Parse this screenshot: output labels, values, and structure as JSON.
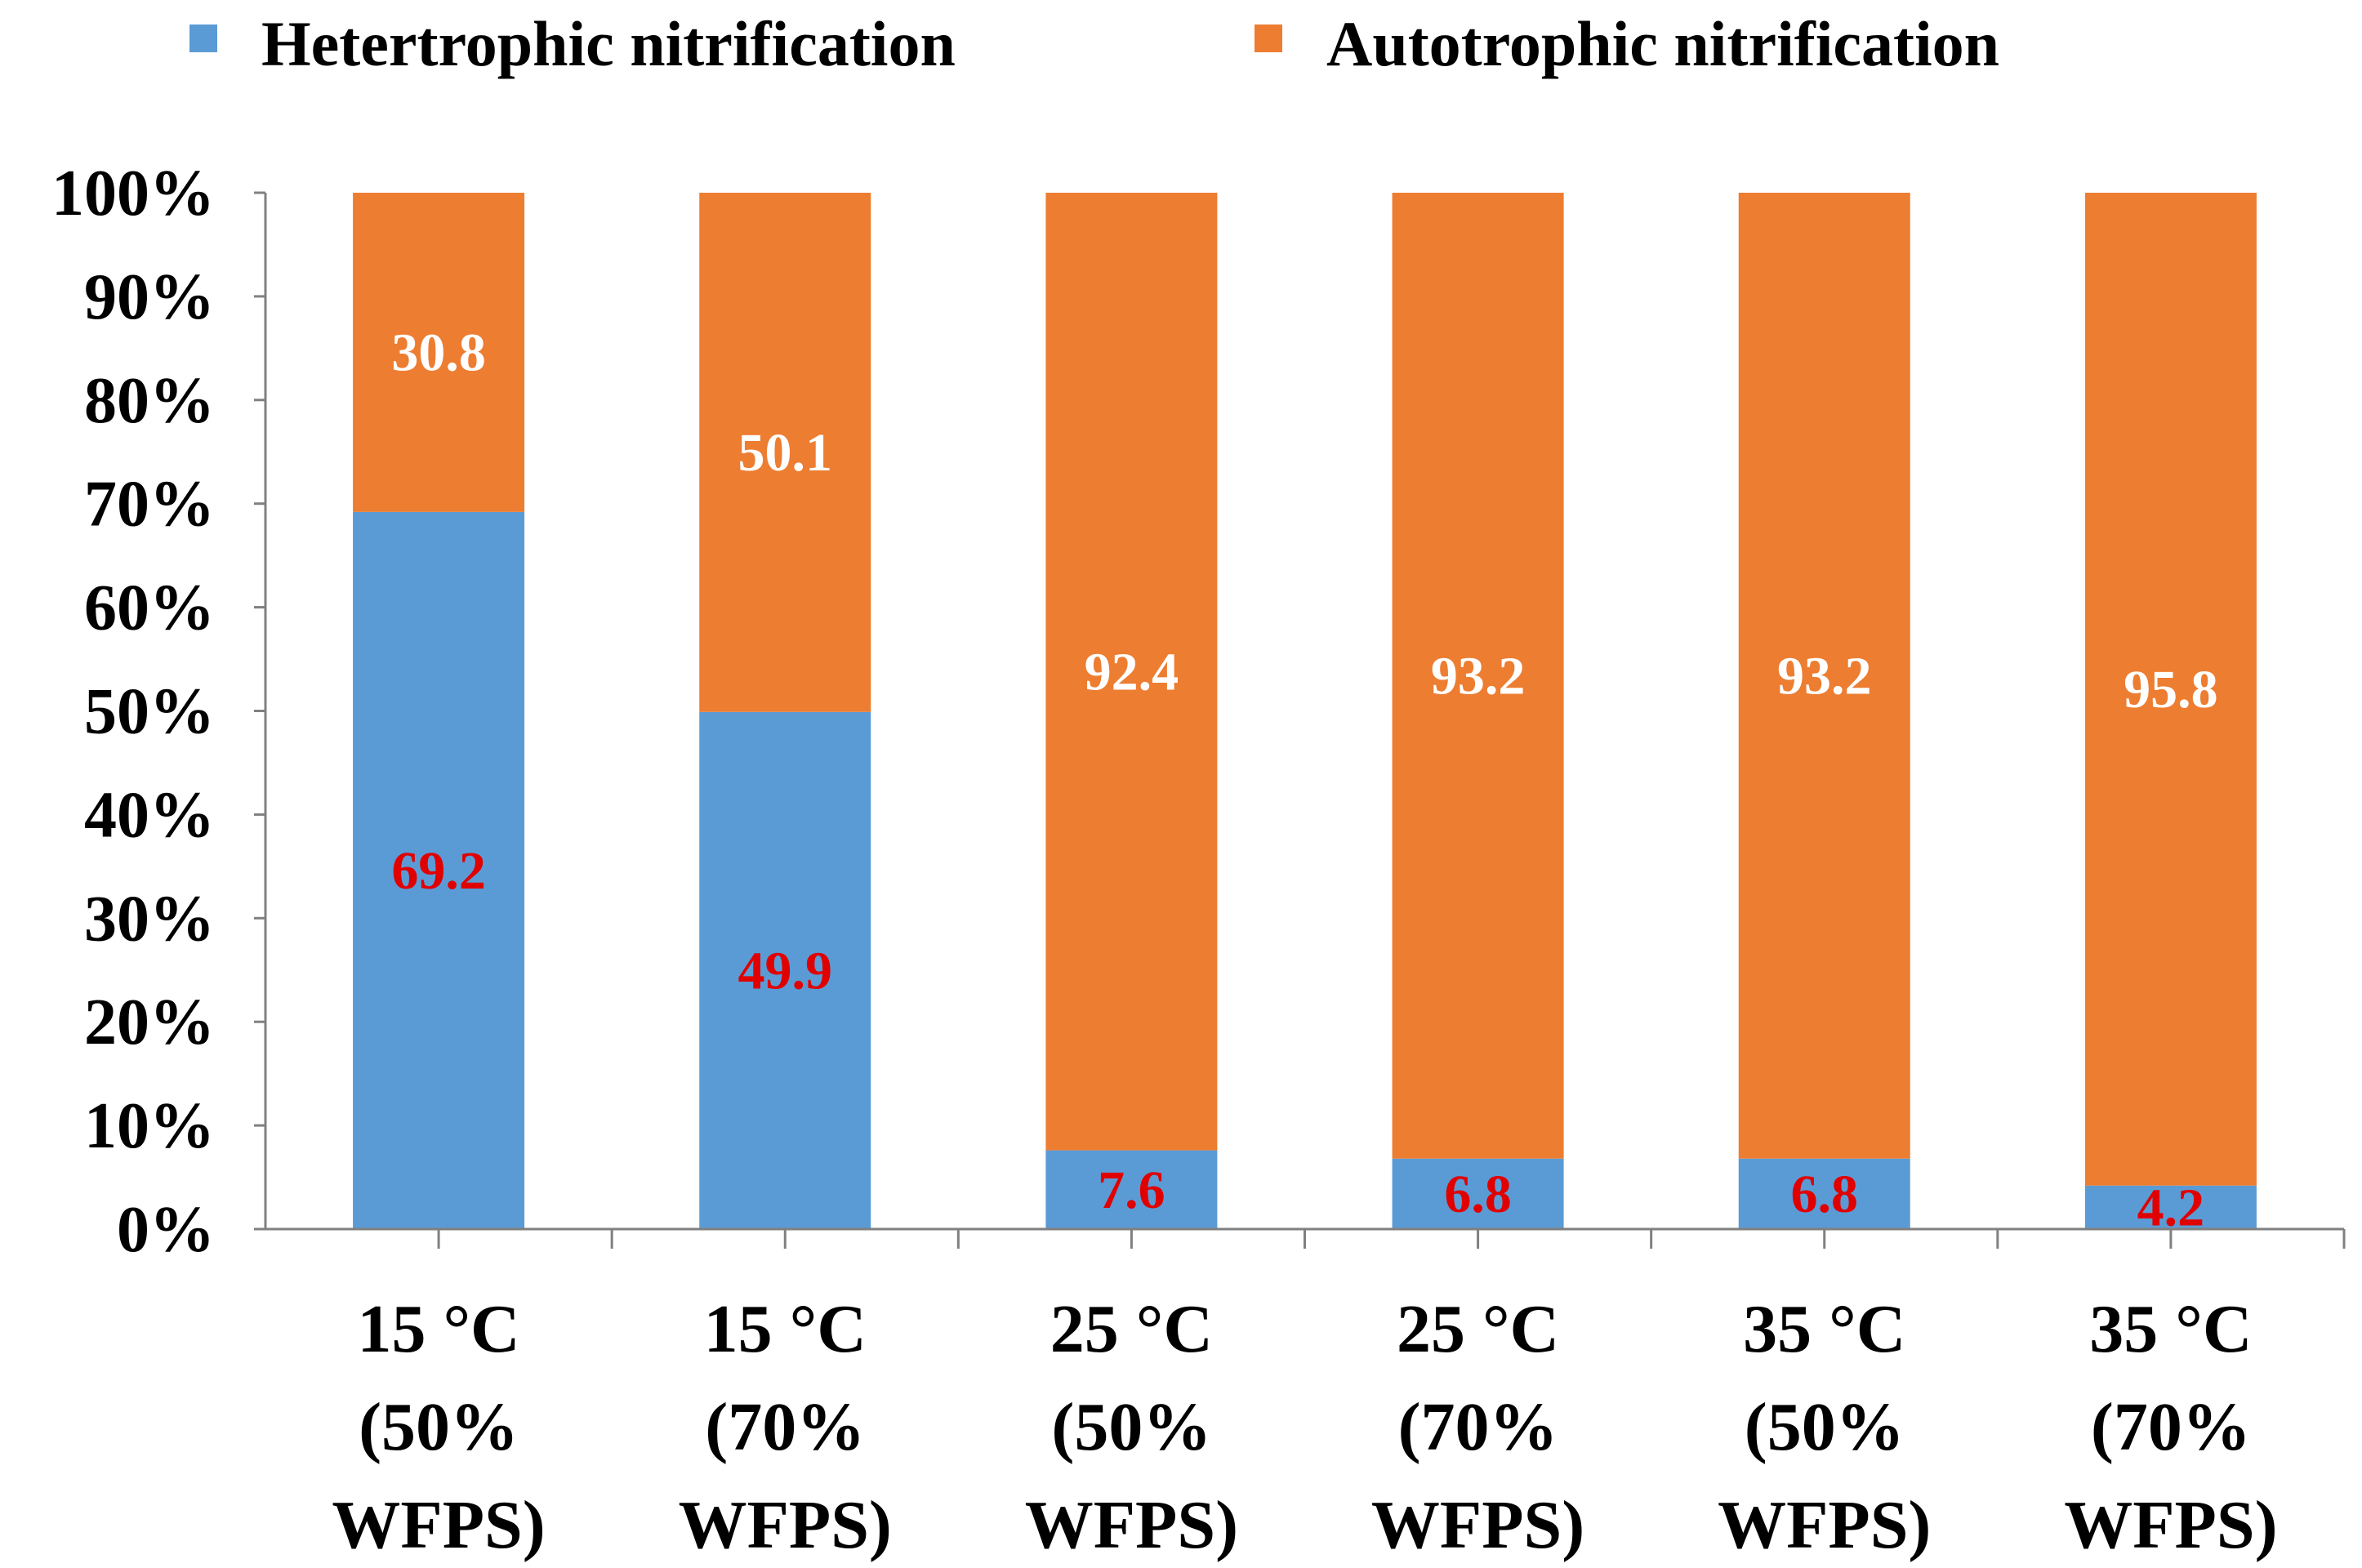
{
  "chart_data": {
    "type": "bar",
    "stacked": true,
    "percent": true,
    "title": "",
    "xlabel": "",
    "ylabel": "",
    "ylim": [
      0,
      100
    ],
    "yticks": [
      "0%",
      "10%",
      "20%",
      "30%",
      "40%",
      "50%",
      "60%",
      "70%",
      "80%",
      "90%",
      "100%"
    ],
    "categories": [
      [
        "15 °C",
        "(50%",
        "WFPS)"
      ],
      [
        "15 °C",
        "(70%",
        "WFPS)"
      ],
      [
        "25 °C",
        "(50%",
        "WFPS)"
      ],
      [
        "25 °C",
        "(70%",
        "WFPS)"
      ],
      [
        "35 °C",
        "(50%",
        "WFPS)"
      ],
      [
        "35 °C",
        "(70%",
        "WFPS)"
      ]
    ],
    "series": [
      {
        "name": "Hetertrophic nitrification",
        "color": "#5b9bd5",
        "label_color": "#e00000",
        "values": [
          69.2,
          49.9,
          7.6,
          6.8,
          6.8,
          4.2
        ],
        "labels": [
          "69.2",
          "49.9",
          "7.6",
          "6.8",
          "6.8",
          "4.2"
        ]
      },
      {
        "name": "Autotrophic nitrification",
        "color": "#ed7d31",
        "label_color": "#ffffff",
        "values": [
          30.8,
          50.1,
          92.4,
          93.2,
          93.2,
          95.8
        ],
        "labels": [
          "30.8",
          "50.1",
          "92.4",
          "93.2",
          "93.2",
          "95.8"
        ]
      }
    ],
    "legend_position": "top",
    "grid": false
  }
}
